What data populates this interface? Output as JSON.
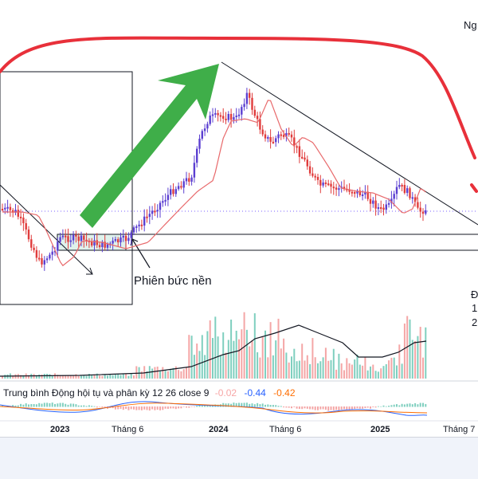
{
  "annotation": {
    "text": "Phiên bức nền"
  },
  "top_right": {
    "text": "Ng"
  },
  "right_side": {
    "line1": "Đ",
    "line2": "1",
    "line3": "2"
  },
  "indicator": {
    "name": "Trung bình Động hội tụ và phân kỳ 12 26 close 9",
    "values": [
      {
        "text": "-0.02",
        "color": "#f7a6a6"
      },
      {
        "text": "-0.44",
        "color": "#2962ff"
      },
      {
        "text": "-0.42",
        "color": "#ff6d00"
      }
    ]
  },
  "time_axis": [
    {
      "label": "2023",
      "bold": true
    },
    {
      "label": "Tháng 6",
      "bold": false
    },
    {
      "label": "2024",
      "bold": true
    },
    {
      "label": "Tháng 6",
      "bold": false
    },
    {
      "label": "2025",
      "bold": true
    },
    {
      "label": "Tháng 7",
      "bold": false
    }
  ],
  "colors": {
    "up": "#5b3fd1",
    "down": "#e03c3c",
    "ma": "#e8696b",
    "volume_up": "#7fcfbf",
    "volume_down": "#f4a6a6",
    "volume_ma": "#131722",
    "arrow": "#3fae49",
    "red_curve": "#e8303a",
    "macd": "#2962ff",
    "signal": "#ff6d00"
  }
}
